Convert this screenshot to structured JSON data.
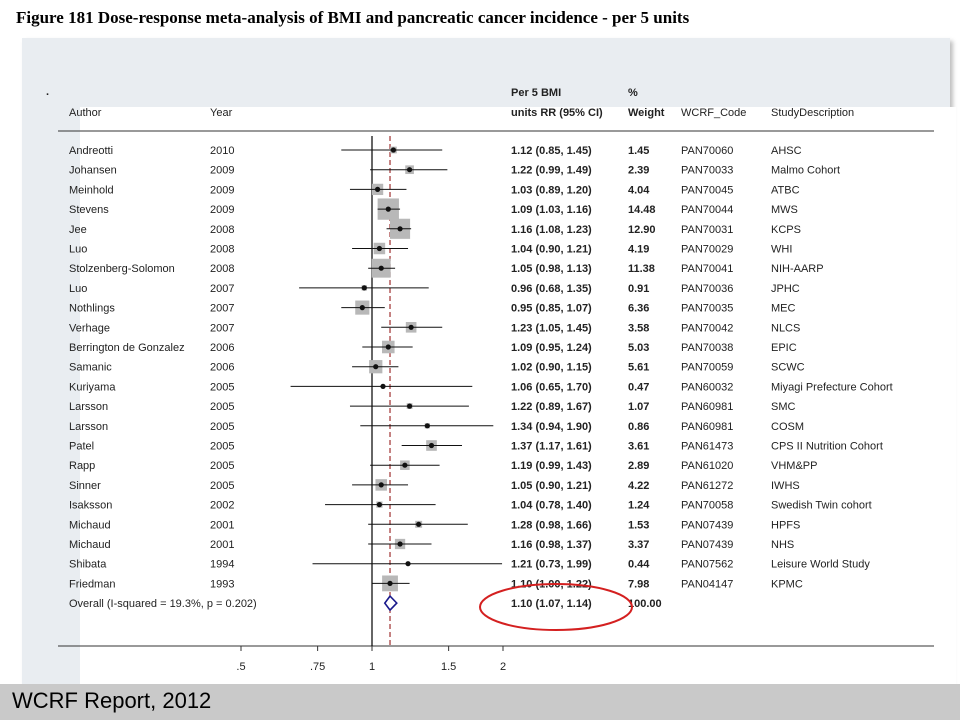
{
  "figure_title": "Figure 181 Dose-response meta-analysis of BMI and pancreatic cancer incidence - per 5 units",
  "footer": "WCRF Report,  2012",
  "stray_mark": ".",
  "headers": {
    "author": "Author",
    "year": "Year",
    "rr_line1": "Per 5 BMI",
    "rr_line2": "units RR (95% CI)",
    "weight_line1": "%",
    "weight_line2": "Weight",
    "code": "WCRF_Code",
    "desc": "StudyDescription"
  },
  "colors": {
    "highlight_circle": "#d42020",
    "null_line": "#000000",
    "overall_line": "#a03030",
    "diamond": "#1a1a8c",
    "weight_box": "#b8b8b8"
  },
  "chart_data": {
    "type": "forest",
    "x_scale": "log",
    "xlim": [
      0.45,
      2.1
    ],
    "x_ticks": [
      0.5,
      0.75,
      1,
      1.5,
      2
    ],
    "x_tick_labels": [
      ".5",
      ".75",
      "1",
      "1.5",
      "2"
    ],
    "null_value": 1,
    "overall_value": 1.1,
    "studies": [
      {
        "author": "Andreotti",
        "year": "2010",
        "rr": 1.12,
        "lo": 0.85,
        "hi": 1.45,
        "rr_text": "1.12 (0.85, 1.45)",
        "weight": "1.45",
        "code": "PAN70060",
        "desc": "AHSC"
      },
      {
        "author": "Johansen",
        "year": "2009",
        "rr": 1.22,
        "lo": 0.99,
        "hi": 1.49,
        "rr_text": "1.22 (0.99, 1.49)",
        "weight": "2.39",
        "code": "PAN70033",
        "desc": "Malmo Cohort"
      },
      {
        "author": "Meinhold",
        "year": "2009",
        "rr": 1.03,
        "lo": 0.89,
        "hi": 1.2,
        "rr_text": "1.03 (0.89, 1.20)",
        "weight": "4.04",
        "code": "PAN70045",
        "desc": "ATBC"
      },
      {
        "author": "Stevens",
        "year": "2009",
        "rr": 1.09,
        "lo": 1.03,
        "hi": 1.16,
        "rr_text": "1.09 (1.03, 1.16)",
        "weight": "14.48",
        "code": "PAN70044",
        "desc": "MWS"
      },
      {
        "author": "Jee",
        "year": "2008",
        "rr": 1.16,
        "lo": 1.08,
        "hi": 1.23,
        "rr_text": "1.16 (1.08, 1.23)",
        "weight": "12.90",
        "code": "PAN70031",
        "desc": "KCPS"
      },
      {
        "author": "Luo",
        "year": "2008",
        "rr": 1.04,
        "lo": 0.9,
        "hi": 1.21,
        "rr_text": "1.04 (0.90, 1.21)",
        "weight": "4.19",
        "code": "PAN70029",
        "desc": "WHI"
      },
      {
        "author": "Stolzenberg-Solomon",
        "year": "2008",
        "rr": 1.05,
        "lo": 0.98,
        "hi": 1.13,
        "rr_text": "1.05 (0.98, 1.13)",
        "weight": "11.38",
        "code": "PAN70041",
        "desc": "NIH-AARP"
      },
      {
        "author": "Luo",
        "year": "2007",
        "rr": 0.96,
        "lo": 0.68,
        "hi": 1.35,
        "rr_text": "0.96 (0.68, 1.35)",
        "weight": "0.91",
        "code": "PAN70036",
        "desc": "JPHC"
      },
      {
        "author": "Nothlings",
        "year": "2007",
        "rr": 0.95,
        "lo": 0.85,
        "hi": 1.07,
        "rr_text": "0.95 (0.85, 1.07)",
        "weight": "6.36",
        "code": "PAN70035",
        "desc": "MEC"
      },
      {
        "author": "Verhage",
        "year": "2007",
        "rr": 1.23,
        "lo": 1.05,
        "hi": 1.45,
        "rr_text": "1.23 (1.05, 1.45)",
        "weight": "3.58",
        "code": "PAN70042",
        "desc": "NLCS"
      },
      {
        "author": "Berrington de Gonzalez",
        "year": "2006",
        "rr": 1.09,
        "lo": 0.95,
        "hi": 1.24,
        "rr_text": "1.09 (0.95, 1.24)",
        "weight": "5.03",
        "code": "PAN70038",
        "desc": "EPIC"
      },
      {
        "author": "Samanic",
        "year": "2006",
        "rr": 1.02,
        "lo": 0.9,
        "hi": 1.15,
        "rr_text": "1.02 (0.90, 1.15)",
        "weight": "5.61",
        "code": "PAN70059",
        "desc": "SCWC"
      },
      {
        "author": "Kuriyama",
        "year": "2005",
        "rr": 1.06,
        "lo": 0.65,
        "hi": 1.7,
        "rr_text": "1.06 (0.65, 1.70)",
        "weight": "0.47",
        "code": "PAN60032",
        "desc": "Miyagi Prefecture Cohort"
      },
      {
        "author": "Larsson",
        "year": "2005",
        "rr": 1.22,
        "lo": 0.89,
        "hi": 1.67,
        "rr_text": "1.22 (0.89, 1.67)",
        "weight": "1.07",
        "code": "PAN60981",
        "desc": "SMC"
      },
      {
        "author": "Larsson",
        "year": "2005",
        "rr": 1.34,
        "lo": 0.94,
        "hi": 1.9,
        "rr_text": "1.34 (0.94, 1.90)",
        "weight": "0.86",
        "code": "PAN60981",
        "desc": "COSM"
      },
      {
        "author": "Patel",
        "year": "2005",
        "rr": 1.37,
        "lo": 1.17,
        "hi": 1.61,
        "rr_text": "1.37 (1.17, 1.61)",
        "weight": "3.61",
        "code": "PAN61473",
        "desc": "CPS II Nutrition Cohort"
      },
      {
        "author": "Rapp",
        "year": "2005",
        "rr": 1.19,
        "lo": 0.99,
        "hi": 1.43,
        "rr_text": "1.19 (0.99, 1.43)",
        "weight": "2.89",
        "code": "PAN61020",
        "desc": "VHM&PP"
      },
      {
        "author": "Sinner",
        "year": "2005",
        "rr": 1.05,
        "lo": 0.9,
        "hi": 1.21,
        "rr_text": "1.05 (0.90, 1.21)",
        "weight": "4.22",
        "code": "PAN61272",
        "desc": "IWHS"
      },
      {
        "author": "Isaksson",
        "year": "2002",
        "rr": 1.04,
        "lo": 0.78,
        "hi": 1.4,
        "rr_text": "1.04 (0.78, 1.40)",
        "weight": "1.24",
        "code": "PAN70058",
        "desc": "Swedish Twin cohort"
      },
      {
        "author": "Michaud",
        "year": "2001",
        "rr": 1.28,
        "lo": 0.98,
        "hi": 1.66,
        "rr_text": "1.28 (0.98, 1.66)",
        "weight": "1.53",
        "code": "PAN07439",
        "desc": "HPFS"
      },
      {
        "author": "Michaud",
        "year": "2001",
        "rr": 1.16,
        "lo": 0.98,
        "hi": 1.37,
        "rr_text": "1.16 (0.98, 1.37)",
        "weight": "3.37",
        "code": "PAN07439",
        "desc": "NHS"
      },
      {
        "author": "Shibata",
        "year": "1994",
        "rr": 1.21,
        "lo": 0.73,
        "hi": 1.99,
        "rr_text": "1.21 (0.73, 1.99)",
        "weight": "0.44",
        "code": "PAN07562",
        "desc": "Leisure World Study"
      },
      {
        "author": "Friedman",
        "year": "1993",
        "rr": 1.1,
        "lo": 1.0,
        "hi": 1.22,
        "rr_text": "1.10 (1.00, 1.22)",
        "weight": "7.98",
        "code": "PAN04147",
        "desc": "KPMC"
      }
    ],
    "overall": {
      "label": "Overall  (I-squared = 19.3%, p = 0.202)",
      "rr": 1.1,
      "lo": 1.07,
      "hi": 1.14,
      "rr_text": "1.10 (1.07, 1.14)",
      "weight": "100.00"
    }
  }
}
